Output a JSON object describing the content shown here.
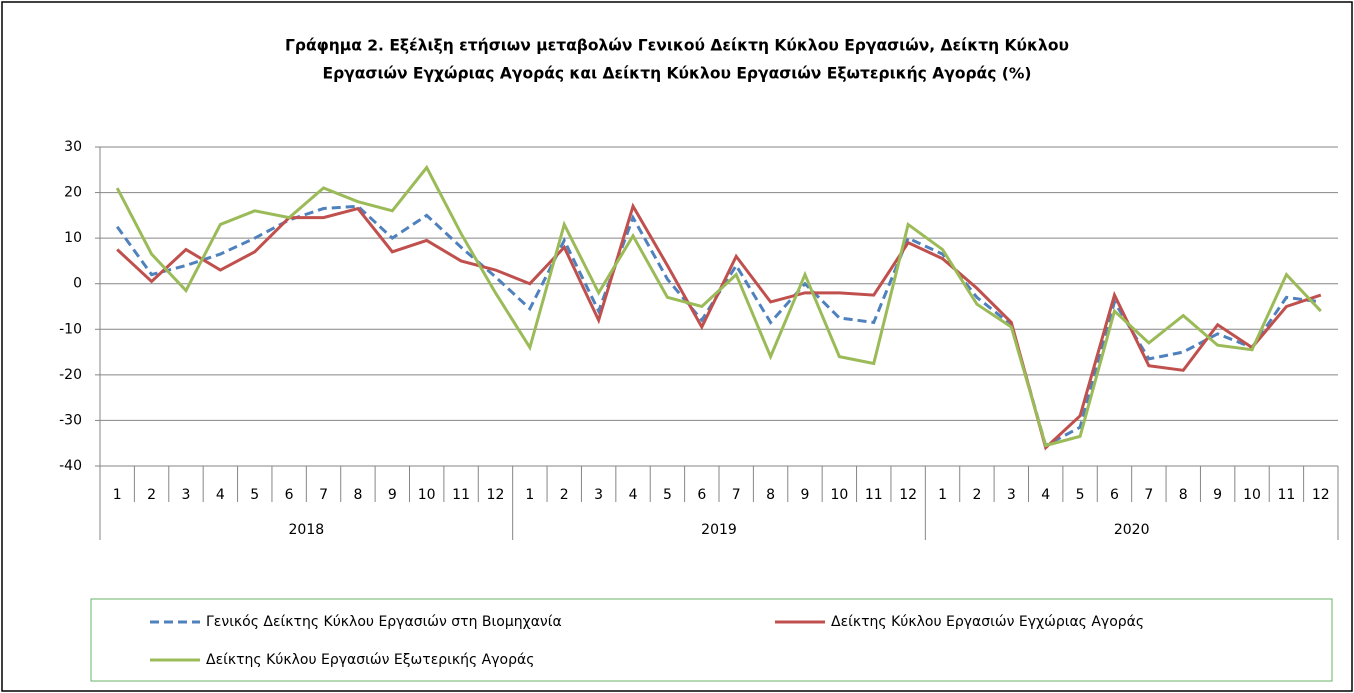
{
  "chart_data": {
    "type": "line",
    "title": [
      "Γράφημα 2. Εξέλιξη ετήσιων μεταβολών Γενικού Δείκτη Κύκλου Εργασιών,  Δείκτη Κύκλου",
      "Εργασιών Εγχώριας Αγοράς και Δείκτη Κύκλου Εργασιών Εξωτερικής Αγοράς (%)"
    ],
    "categories": [
      "1",
      "2",
      "3",
      "4",
      "5",
      "6",
      "7",
      "8",
      "9",
      "10",
      "11",
      "12",
      "1",
      "2",
      "3",
      "4",
      "5",
      "6",
      "7",
      "8",
      "9",
      "10",
      "11",
      "12",
      "1",
      "2",
      "3",
      "4",
      "5",
      "6",
      "7",
      "8",
      "9",
      "10",
      "11",
      "12"
    ],
    "years": [
      "2018",
      "2019",
      "2020"
    ],
    "ylim": [
      -40,
      30
    ],
    "yticks": [
      -40,
      -30,
      -20,
      -10,
      0,
      10,
      20,
      30
    ],
    "grid": true,
    "series": [
      {
        "name": "Γενικός Δείκτης Κύκλου Εργασιών στη Βιομηχανία",
        "color": "#4f81bd",
        "dashed": true,
        "values": [
          12.5,
          2,
          4,
          6.5,
          10,
          14,
          16.5,
          17,
          10,
          15,
          8,
          1.5,
          -5.5,
          9.5,
          -6,
          14.5,
          1,
          -8,
          4,
          -8.5,
          0,
          -7.5,
          -8.5,
          10,
          6.5,
          -3,
          -9,
          -35.5,
          -31.5,
          -4,
          -16.5,
          -15,
          -11,
          -14,
          -3,
          -4
        ]
      },
      {
        "name": "Δείκτης Κύκλου Εργασιών Εγχώριας Αγοράς",
        "color": "#c0504d",
        "dashed": false,
        "values": [
          7.5,
          0.5,
          7.5,
          3,
          7,
          14.5,
          14.5,
          16.5,
          7,
          9.5,
          5,
          3,
          0,
          8,
          -8,
          17,
          4,
          -9.5,
          6,
          -4,
          -2,
          -2,
          -2.5,
          9,
          5.5,
          -1,
          -8.5,
          -36,
          -29,
          -2.5,
          -18,
          -19,
          -9,
          -14,
          -5,
          -2.5
        ]
      },
      {
        "name": "Δείκτης Κύκλου Εργασιών Εξωτερικής Αγοράς",
        "color": "#9bbb59",
        "dashed": false,
        "values": [
          21,
          6.5,
          -1.5,
          13,
          16,
          14.5,
          21,
          18,
          16,
          25.5,
          11,
          -2,
          -14,
          13,
          -2,
          10.5,
          -3,
          -5,
          2,
          -16,
          2,
          -16,
          -17.5,
          13,
          7.5,
          -4.5,
          -9.5,
          -35.5,
          -33.5,
          -6,
          -13,
          -7,
          -13.5,
          -14.5,
          2,
          -6
        ]
      }
    ]
  }
}
